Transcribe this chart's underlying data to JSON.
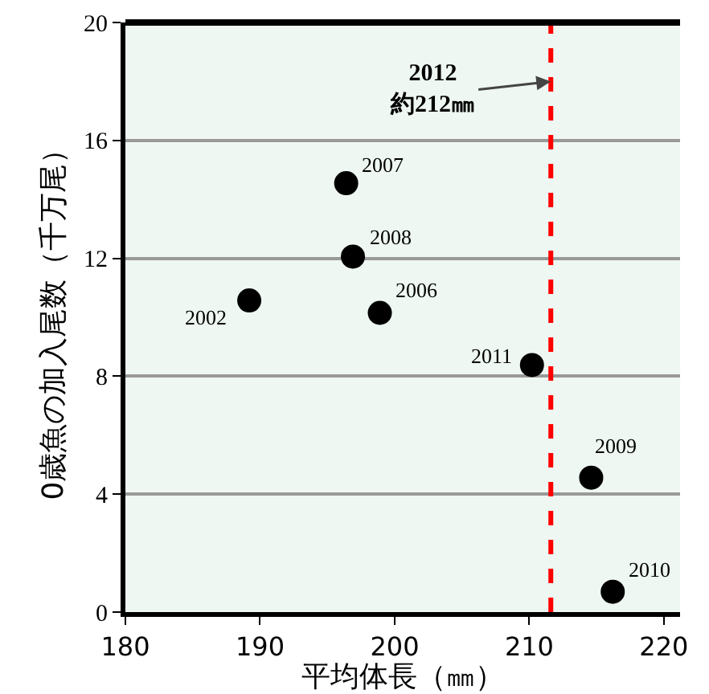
{
  "chart_data": {
    "type": "scatter",
    "xlabel": "平均体長（㎜）",
    "ylabel": "0歳魚の加入尾数（千万尾）",
    "x": [
      189.2,
      198.9,
      196.4,
      196.9,
      214.6,
      216.2,
      210.2
    ],
    "values": [
      10.57,
      10.15,
      14.55,
      12.06,
      4.56,
      0.69,
      8.38
    ],
    "color": "#000000",
    "marker": "circle",
    "xlim": [
      180,
      221.2
    ],
    "xticks": [
      180,
      190,
      200,
      210,
      220
    ],
    "ylim": [
      0,
      20
    ],
    "yticks": [
      0,
      4,
      8,
      12,
      16,
      20
    ],
    "grid": "y",
    "ref_lines": [
      {
        "axis": "x",
        "value": 211.6,
        "label": "2012\n約212㎜",
        "color": "#ff0000",
        "line_style": "dashed"
      }
    ],
    "annotations": [
      {
        "text": "2002",
        "x": 189.2,
        "y": 10.57
      },
      {
        "text": "2006",
        "x": 198.9,
        "y": 10.15
      },
      {
        "text": "2007",
        "x": 196.4,
        "y": 14.55
      },
      {
        "text": "2008",
        "x": 196.9,
        "y": 12.06
      },
      {
        "text": "2009",
        "x": 214.6,
        "y": 4.56
      },
      {
        "text": "2010",
        "x": 216.2,
        "y": 0.69
      },
      {
        "text": "2011",
        "x": 210.2,
        "y": 8.38
      }
    ]
  }
}
